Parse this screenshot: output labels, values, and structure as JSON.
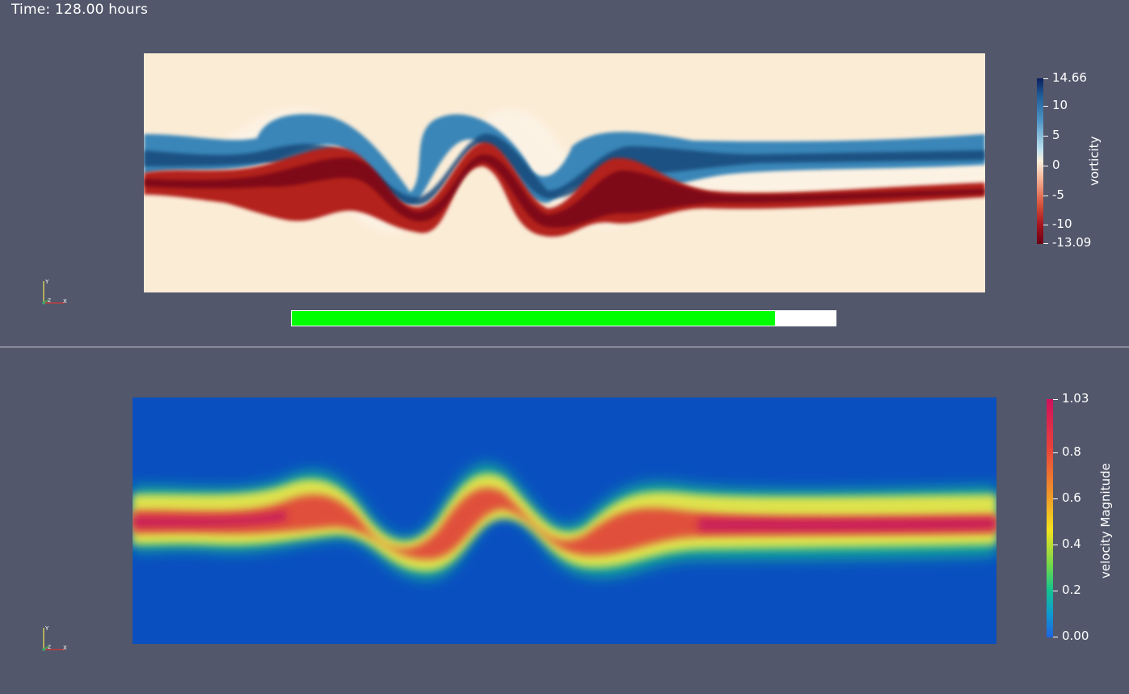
{
  "time_label": "Time: 128.00 hours",
  "progress": {
    "fraction": 0.889,
    "fill_color": "#00ff00"
  },
  "vorticity": {
    "title": "vorticity",
    "range": [
      -13.09,
      14.66
    ],
    "ticks": [
      "14.66",
      "10",
      "5",
      "0",
      "-5",
      "-10",
      "-13.09"
    ],
    "tick_values": [
      14.66,
      10,
      5,
      0,
      -5,
      -10,
      -13.09
    ],
    "colors": {
      "high": "#0a1f5c",
      "mid": "#fbf0dc",
      "low": "#6b0014",
      "background": "#fbecd6"
    }
  },
  "velocity": {
    "title": "velocity Magnitude",
    "range": [
      0.0,
      1.03
    ],
    "ticks": [
      "1.03",
      "0.8",
      "0.6",
      "0.4",
      "0.2",
      "0.00"
    ],
    "tick_values": [
      1.03,
      0.8,
      0.6,
      0.4,
      0.2,
      0.0
    ],
    "colors": {
      "background": "#0a4fc0",
      "core": "#d01e5a"
    }
  },
  "axes": {
    "y": "Y",
    "z": "Z",
    "x": "X"
  }
}
